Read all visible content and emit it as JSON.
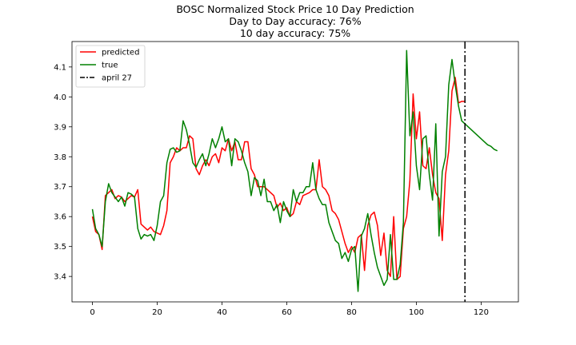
{
  "chart_data": {
    "type": "line",
    "title_lines": [
      "BOSC Normalized Stock Price 10 Day Prediction",
      "Day to Day accuracy: 76%",
      "10 day accuracy: 75%"
    ],
    "xlabel": "",
    "ylabel": "",
    "xlim": [
      -6.3,
      131.5
    ],
    "ylim": [
      3.315,
      4.185
    ],
    "x_ticks": [
      0,
      20,
      40,
      60,
      80,
      100,
      120
    ],
    "y_ticks": [
      3.4,
      3.5,
      3.6,
      3.7,
      3.8,
      3.9,
      4.0,
      4.1
    ],
    "x_tick_labels": [
      "0",
      "20",
      "40",
      "60",
      "80",
      "100",
      "120"
    ],
    "y_tick_labels": [
      "3.4",
      "3.5",
      "3.6",
      "3.7",
      "3.8",
      "3.9",
      "4.0",
      "4.1"
    ],
    "grid": false,
    "legend_position": "top-left",
    "series": [
      {
        "name": "predicted",
        "color": "#ff0000",
        "style": "solid",
        "x": [
          0,
          1,
          2,
          3,
          4,
          5,
          6,
          7,
          8,
          9,
          10,
          11,
          12,
          13,
          14,
          15,
          16,
          17,
          18,
          19,
          20,
          21,
          22,
          23,
          24,
          25,
          26,
          27,
          28,
          29,
          30,
          31,
          32,
          33,
          34,
          35,
          36,
          37,
          38,
          39,
          40,
          41,
          42,
          43,
          44,
          45,
          46,
          47,
          48,
          49,
          50,
          51,
          52,
          53,
          54,
          55,
          56,
          57,
          58,
          59,
          60,
          61,
          62,
          63,
          64,
          65,
          66,
          67,
          68,
          69,
          70,
          71,
          72,
          73,
          74,
          75,
          76,
          77,
          78,
          79,
          80,
          81,
          82,
          83,
          84,
          85,
          86,
          87,
          88,
          89,
          90,
          91,
          92,
          93,
          94,
          95,
          96,
          97,
          98,
          99,
          100,
          101,
          102,
          103,
          104,
          105,
          106,
          107,
          108,
          109,
          110,
          111,
          112,
          113,
          114,
          115
        ],
        "y": [
          3.6,
          3.55,
          3.54,
          3.49,
          3.67,
          3.68,
          3.69,
          3.66,
          3.67,
          3.665,
          3.65,
          3.66,
          3.67,
          3.665,
          3.69,
          3.575,
          3.565,
          3.555,
          3.565,
          3.55,
          3.545,
          3.54,
          3.57,
          3.62,
          3.78,
          3.8,
          3.83,
          3.82,
          3.83,
          3.83,
          3.87,
          3.86,
          3.76,
          3.74,
          3.77,
          3.79,
          3.77,
          3.8,
          3.81,
          3.78,
          3.83,
          3.82,
          3.86,
          3.82,
          3.85,
          3.79,
          3.79,
          3.85,
          3.85,
          3.76,
          3.74,
          3.7,
          3.7,
          3.7,
          3.69,
          3.68,
          3.67,
          3.63,
          3.645,
          3.62,
          3.63,
          3.6,
          3.61,
          3.65,
          3.64,
          3.67,
          3.675,
          3.68,
          3.69,
          3.69,
          3.79,
          3.7,
          3.69,
          3.67,
          3.62,
          3.61,
          3.59,
          3.55,
          3.51,
          3.48,
          3.5,
          3.48,
          3.53,
          3.54,
          3.42,
          3.57,
          3.605,
          3.615,
          3.57,
          3.47,
          3.545,
          3.42,
          3.4,
          3.6,
          3.39,
          3.4,
          3.56,
          3.6,
          3.72,
          4.01,
          3.86,
          3.95,
          3.77,
          3.76,
          3.83,
          3.74,
          3.68,
          3.66,
          3.52,
          3.74,
          3.82,
          4.02,
          4.065,
          3.98,
          3.985,
          3.985
        ]
      },
      {
        "name": "true",
        "color": "#008000",
        "style": "solid",
        "x": [
          0,
          1,
          2,
          3,
          4,
          5,
          6,
          7,
          8,
          9,
          10,
          11,
          12,
          13,
          14,
          15,
          16,
          17,
          18,
          19,
          20,
          21,
          22,
          23,
          24,
          25,
          26,
          27,
          28,
          29,
          30,
          31,
          32,
          33,
          34,
          35,
          36,
          37,
          38,
          39,
          40,
          41,
          42,
          43,
          44,
          45,
          46,
          47,
          48,
          49,
          50,
          51,
          52,
          53,
          54,
          55,
          56,
          57,
          58,
          59,
          60,
          61,
          62,
          63,
          64,
          65,
          66,
          67,
          68,
          69,
          70,
          71,
          72,
          73,
          74,
          75,
          76,
          77,
          78,
          79,
          80,
          81,
          82,
          83,
          84,
          85,
          86,
          87,
          88,
          89,
          90,
          91,
          92,
          93,
          94,
          95,
          96,
          97,
          98,
          99,
          100,
          101,
          102,
          103,
          104,
          105,
          106,
          107,
          108,
          109,
          110,
          111,
          112,
          113,
          114,
          115,
          116,
          117,
          118,
          119,
          120,
          121,
          122,
          123,
          124,
          125
        ],
        "y": [
          3.625,
          3.56,
          3.54,
          3.5,
          3.65,
          3.71,
          3.68,
          3.665,
          3.65,
          3.665,
          3.635,
          3.68,
          3.675,
          3.665,
          3.56,
          3.525,
          3.54,
          3.535,
          3.54,
          3.52,
          3.57,
          3.65,
          3.67,
          3.78,
          3.825,
          3.83,
          3.815,
          3.82,
          3.92,
          3.89,
          3.84,
          3.78,
          3.765,
          3.79,
          3.81,
          3.77,
          3.81,
          3.86,
          3.83,
          3.86,
          3.9,
          3.85,
          3.86,
          3.77,
          3.86,
          3.85,
          3.82,
          3.78,
          3.75,
          3.67,
          3.73,
          3.72,
          3.67,
          3.725,
          3.65,
          3.65,
          3.62,
          3.64,
          3.58,
          3.65,
          3.62,
          3.6,
          3.69,
          3.65,
          3.68,
          3.68,
          3.7,
          3.7,
          3.78,
          3.69,
          3.66,
          3.64,
          3.64,
          3.58,
          3.55,
          3.52,
          3.51,
          3.46,
          3.48,
          3.45,
          3.49,
          3.5,
          3.35,
          3.535,
          3.56,
          3.61,
          3.54,
          3.48,
          3.43,
          3.4,
          3.37,
          3.39,
          3.54,
          3.39,
          3.39,
          3.44,
          3.58,
          4.155,
          3.87,
          3.95,
          3.77,
          3.69,
          3.86,
          3.87,
          3.74,
          3.655,
          3.91,
          3.535,
          3.75,
          3.8,
          4.04,
          4.125,
          4.04,
          3.97,
          3.92,
          3.91,
          3.9,
          3.89,
          3.88,
          3.87,
          3.86,
          3.85,
          3.84,
          3.835,
          3.825,
          3.82
        ]
      }
    ],
    "vline": {
      "name": "april 27",
      "x": 115,
      "color": "#000000",
      "style": "dash-dot"
    }
  }
}
